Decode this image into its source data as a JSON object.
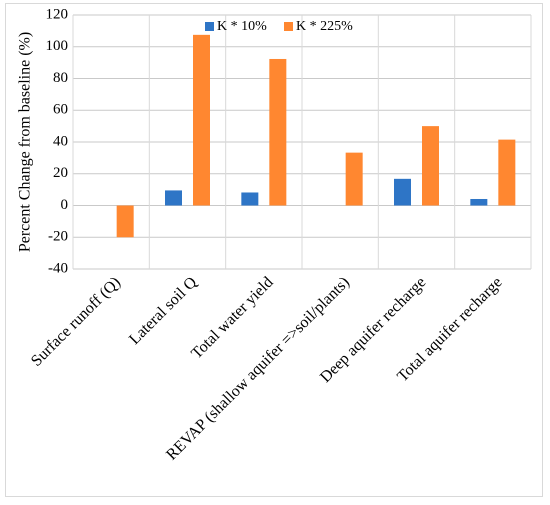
{
  "chart_data": {
    "type": "bar",
    "title": "",
    "xlabel": "",
    "ylabel": "Percent Change from baseline (%)",
    "ylim": [
      -40,
      120
    ],
    "ytick_step": 20,
    "grid": "horizontal",
    "legend_position": "top",
    "categories": [
      "Surface runoff (Q)",
      "Lateral soil Q",
      "Total water yield",
      "REVAP (shallow aquifer =>soil/plants)",
      "Deep aquifer recharge",
      "Total aquifer recharge"
    ],
    "series": [
      {
        "name": "K * 10%",
        "color": "#2e75c6",
        "values": [
          0,
          9.5,
          8.2,
          0,
          16.8,
          4.1
        ]
      },
      {
        "name": "K * 225%",
        "color": "#ff8730",
        "values": [
          -20,
          107.5,
          92.3,
          33.3,
          50.0,
          41.5
        ]
      }
    ]
  }
}
